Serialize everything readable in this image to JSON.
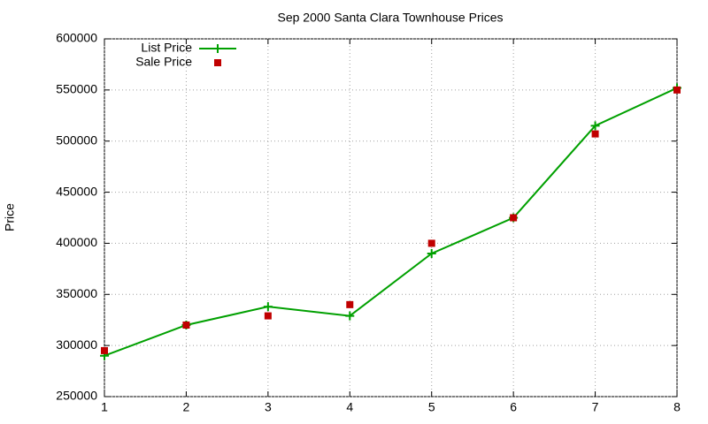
{
  "chart_data": {
    "type": "line",
    "title": "Sep 2000 Santa Clara Townhouse Prices",
    "y_label": "Price",
    "x": [
      1,
      2,
      3,
      4,
      5,
      6,
      7,
      8
    ],
    "series": [
      {
        "name": "List Price",
        "color": "#00a000",
        "mode": "lines+markers",
        "marker": "plus",
        "values": [
          290000,
          320000,
          338000,
          329000,
          390000,
          425000,
          515000,
          552000
        ]
      },
      {
        "name": "Sale Price",
        "color": "#c00000",
        "mode": "markers",
        "marker": "square",
        "values": [
          295000,
          320000,
          329000,
          340000,
          400000,
          425000,
          507000,
          550000
        ]
      }
    ],
    "xlim": [
      1,
      8
    ],
    "xticks": [
      1,
      2,
      3,
      4,
      5,
      6,
      7,
      8
    ],
    "ylim": [
      250000,
      600000
    ],
    "yticks": [
      250000,
      300000,
      350000,
      400000,
      450000,
      500000,
      550000,
      600000
    ],
    "grid": true,
    "legend": "top-left"
  }
}
